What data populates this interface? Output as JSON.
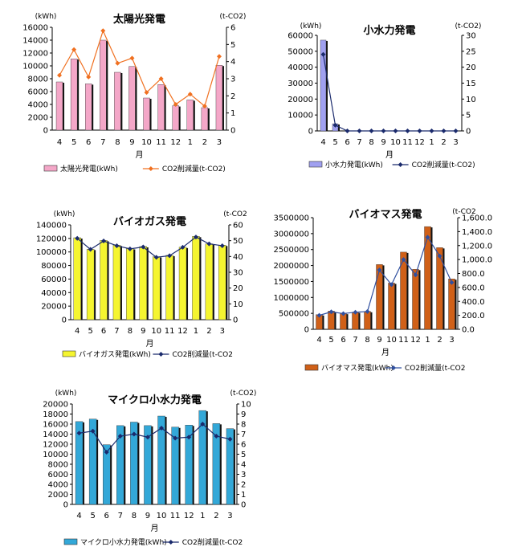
{
  "chart_data": [
    {
      "type": "bar+line",
      "title": "太陽光発電",
      "xlabel": "月",
      "left_unit": "(kWh)",
      "right_unit": "(t-CO2)",
      "categories": [
        "4",
        "5",
        "6",
        "7",
        "8",
        "9",
        "10",
        "11",
        "12",
        "1",
        "2",
        "3"
      ],
      "ylim": [
        0,
        16000
      ],
      "yticks": [
        "0",
        "2000",
        "4000",
        "6000",
        "8000",
        "10000",
        "12000",
        "14000",
        "16000"
      ],
      "y2lim": [
        0,
        6
      ],
      "y2ticks": [
        "0",
        "1",
        "2",
        "3",
        "4",
        "5",
        "6"
      ],
      "bar_series": {
        "name": "太陽光発電(kWh)",
        "color": "#f4a7c8",
        "values": [
          7500,
          11100,
          7200,
          14000,
          9000,
          9900,
          5000,
          7100,
          3800,
          4700,
          3500,
          10100
        ]
      },
      "line_series": {
        "name": "CO2削減量(t-CO2)",
        "color": "#f07020",
        "marker": "diamond",
        "values": [
          3.2,
          4.7,
          3.1,
          5.8,
          3.9,
          4.2,
          2.2,
          3.0,
          1.5,
          2.1,
          1.4,
          4.3
        ]
      }
    },
    {
      "type": "bar+line",
      "title": "小水力発電",
      "xlabel": "月",
      "left_unit": "(kWh)",
      "right_unit": "(t-CO2)",
      "categories": [
        "4",
        "5",
        "6",
        "7",
        "8",
        "9",
        "10",
        "11",
        "12",
        "1",
        "2",
        "3"
      ],
      "ylim": [
        0,
        60000
      ],
      "yticks": [
        "0",
        "10000",
        "20000",
        "30000",
        "40000",
        "50000",
        "60000"
      ],
      "y2lim": [
        0,
        30
      ],
      "y2ticks": [
        "0",
        "5",
        "10",
        "15",
        "20",
        "25",
        "30"
      ],
      "bar_series": {
        "name": "小水力発電(kWh)",
        "color": "#a0a0f0",
        "values": [
          57000,
          4500,
          0,
          0,
          0,
          0,
          0,
          0,
          0,
          0,
          0,
          0
        ]
      },
      "line_series": {
        "name": "CO2削減量(t-CO2)",
        "color": "#1a2a6c",
        "marker": "diamond",
        "values": [
          24,
          1.8,
          0,
          0,
          0,
          0,
          0,
          0,
          0,
          0,
          0,
          0
        ]
      }
    },
    {
      "type": "bar+line",
      "title": "バイオガス発電",
      "xlabel": "月",
      "left_unit": "(kWh)",
      "right_unit": "(t-CO2",
      "categories": [
        "4",
        "5",
        "6",
        "7",
        "8",
        "9",
        "10",
        "11",
        "12",
        "1",
        "2",
        "3"
      ],
      "ylim": [
        0,
        140000
      ],
      "yticks": [
        "0",
        "20000",
        "40000",
        "60000",
        "80000",
        "100000",
        "120000",
        "140000"
      ],
      "y2lim": [
        0,
        60
      ],
      "y2ticks": [
        "0",
        "10",
        "20",
        "30",
        "40",
        "50",
        "60"
      ],
      "bar_series": {
        "name": "バイオガス発電(kWh)",
        "color": "#f5f530",
        "values": [
          121000,
          104000,
          117000,
          110000,
          105000,
          108000,
          93000,
          95000,
          107000,
          123000,
          112000,
          110000
        ]
      },
      "line_series": {
        "name": "CO2削減量(t-CO2",
        "color": "#1a2a6c",
        "marker": "diamond",
        "values": [
          51.5,
          44.5,
          49.8,
          46.8,
          44.8,
          46.0,
          39.5,
          40.5,
          45.8,
          52.3,
          48.0,
          46.8
        ]
      }
    },
    {
      "type": "bar+line",
      "title": "バイオマス発電",
      "xlabel": "月",
      "left_unit": "",
      "right_unit": "(t-CO2",
      "categories": [
        "4",
        "5",
        "6",
        "7",
        "8",
        "9",
        "10",
        "11",
        "12",
        "1",
        "2",
        "3"
      ],
      "ylim": [
        0,
        3500000
      ],
      "yticks": [
        "0",
        "500000",
        "1000000",
        "1500000",
        "2000000",
        "2500000",
        "3000000",
        "3500000"
      ],
      "y2lim": [
        0,
        1600
      ],
      "y2ticks": [
        "0.0",
        "200.0",
        "400.0",
        "600.0",
        "800.0",
        "1,000.0",
        "1,200.0",
        "1,400.0",
        "1,600.0"
      ],
      "bar_series": {
        "name": "バイオマス発電(kWh)",
        "color": "#d06018",
        "values": [
          460000,
          570000,
          500000,
          540000,
          560000,
          2030000,
          1450000,
          2420000,
          1880000,
          3220000,
          2560000,
          1580000
        ]
      },
      "line_series": {
        "name": "CO2削減量(t-CO2",
        "color": "#3050a0",
        "marker": "diamond",
        "values": [
          200,
          250,
          225,
          245,
          255,
          850,
          640,
          1000,
          780,
          1320,
          1050,
          670
        ]
      }
    },
    {
      "type": "bar+line",
      "title": "マイクロ小水力発電",
      "xlabel": "月",
      "left_unit": "(kWh)",
      "right_unit": "(t-CO2)",
      "categories": [
        "4",
        "5",
        "6",
        "7",
        "8",
        "9",
        "10",
        "11",
        "12",
        "1",
        "2",
        "3"
      ],
      "ylim": [
        0,
        20000
      ],
      "yticks": [
        "0",
        "2000",
        "4000",
        "6000",
        "8000",
        "10000",
        "12000",
        "14000",
        "16000",
        "18000",
        "20000"
      ],
      "y2lim": [
        0,
        10
      ],
      "y2ticks": [
        "0",
        "1",
        "2",
        "3",
        "4",
        "5",
        "6",
        "7",
        "8",
        "9",
        "10"
      ],
      "bar_series": {
        "name": "マイクロ小水力発電(kWh)",
        "color": "#33a8d8",
        "values": [
          16500,
          17000,
          11900,
          15700,
          16400,
          15700,
          17600,
          15400,
          15800,
          18700,
          16100,
          15100
        ]
      },
      "line_series": {
        "name": "CO2削減量(t-CO2",
        "color": "#1a2a6c",
        "marker": "diamond",
        "values": [
          7.1,
          7.3,
          5.2,
          6.8,
          7.0,
          6.7,
          7.6,
          6.6,
          6.7,
          8.0,
          6.8,
          6.5
        ]
      }
    }
  ]
}
